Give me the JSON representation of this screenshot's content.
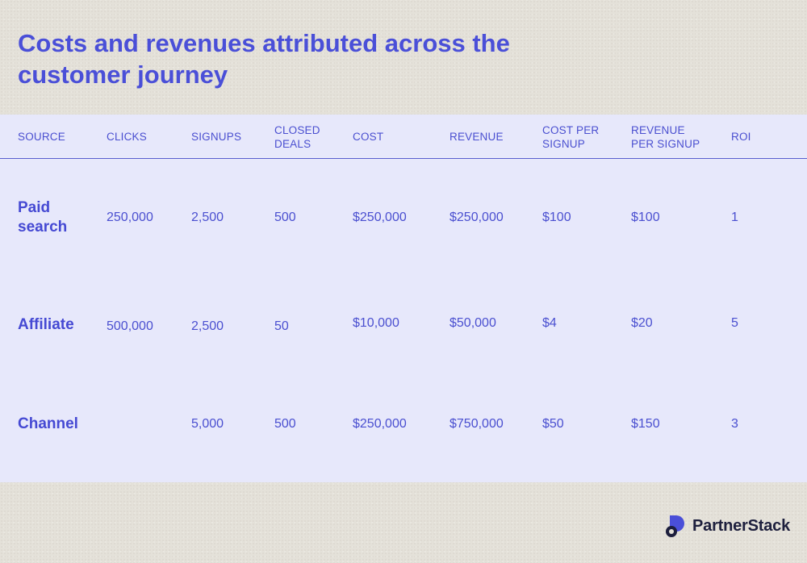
{
  "title": "Costs and revenues attributed across the customer journey",
  "table": {
    "headers": [
      {
        "key": "source",
        "label": "SOURCE"
      },
      {
        "key": "clicks",
        "label": "CLICKS"
      },
      {
        "key": "signups",
        "label": "SIGNUPS"
      },
      {
        "key": "closed_deals",
        "label": "CLOSED\nDEALS"
      },
      {
        "key": "cost",
        "label": "COST"
      },
      {
        "key": "revenue",
        "label": "REVENUE"
      },
      {
        "key": "cost_per_signup",
        "label": "COST PER\nSIGNUP"
      },
      {
        "key": "revenue_per_signup",
        "label": "REVENUE\nPER SIGNUP"
      },
      {
        "key": "roi",
        "label": "ROI"
      }
    ],
    "rows": [
      {
        "source": "Paid\nsearch",
        "clicks": "250,000",
        "signups": "2,500",
        "closed_deals": "500",
        "cost": "$250,000",
        "revenue": "$250,000",
        "cost_per_signup": "$100",
        "revenue_per_signup": "$100",
        "roi": "1"
      },
      {
        "source": "Affiliate",
        "clicks": "500,000",
        "signups": "2,500",
        "closed_deals": "50",
        "cost": "$10,000",
        "revenue": "$50,000",
        "cost_per_signup": "$4",
        "revenue_per_signup": "$20",
        "roi": "5"
      },
      {
        "source": "Channel",
        "clicks": "",
        "signups": "5,000",
        "closed_deals": "500",
        "cost": "$250,000",
        "revenue": "$750,000",
        "cost_per_signup": "$50",
        "revenue_per_signup": "$150",
        "roi": "3"
      }
    ]
  },
  "brand": {
    "name": "PartnerStack",
    "accent_color": "#4a4fd8",
    "panel_color": "#e7e8fb",
    "logo_icon": "partnerstack-logo-icon"
  }
}
